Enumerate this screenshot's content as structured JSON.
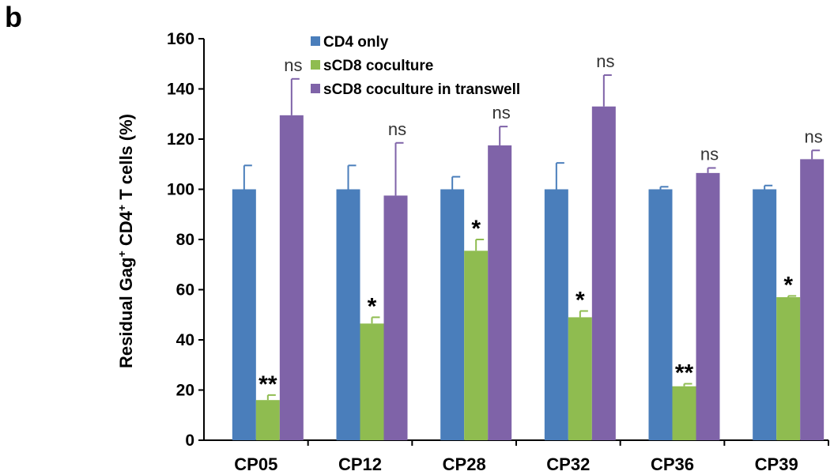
{
  "panel_label": "b",
  "chart_data": {
    "type": "bar",
    "title": "",
    "xlabel": "",
    "ylabel": {
      "main": "Residual Gag",
      "sup1": "+",
      "mid": " CD4",
      "sup2": "+",
      "end": " T cells (%)"
    },
    "ylim": [
      0,
      160
    ],
    "yticks": [
      0,
      20,
      40,
      60,
      80,
      100,
      120,
      140,
      160
    ],
    "grid": false,
    "legend_position": "top-center",
    "categories": [
      "CP05",
      "CP12",
      "CP28",
      "CP32",
      "CP36",
      "CP39"
    ],
    "series": [
      {
        "name": "CD4 only",
        "color": "#4a7ebb",
        "values": [
          100,
          100,
          100,
          100,
          100,
          100
        ],
        "errors": [
          9.5,
          9.5,
          5,
          10.5,
          1,
          1.5
        ],
        "annotations": [
          "",
          "",
          "",
          "",
          "",
          ""
        ]
      },
      {
        "name": "sCD8 coculture",
        "color": "#8fbc50",
        "values": [
          16,
          46.5,
          75.5,
          49,
          21.5,
          57
        ],
        "errors": [
          2,
          2.5,
          4.5,
          2.5,
          1,
          0.5
        ],
        "annotations": [
          "**",
          "*",
          "*",
          "*",
          "**",
          "*"
        ]
      },
      {
        "name": "sCD8 coculture in transwell",
        "color": "#7f63a8",
        "values": [
          129.5,
          97.5,
          117.5,
          133,
          106.5,
          112
        ],
        "errors": [
          14.5,
          21,
          7.5,
          12.5,
          2,
          3.5
        ],
        "annotations": [
          "ns",
          "ns",
          "ns",
          "ns",
          "ns",
          "ns"
        ]
      }
    ]
  }
}
